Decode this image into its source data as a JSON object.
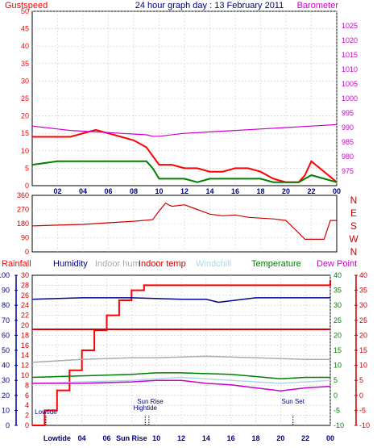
{
  "chart_data": [
    {
      "type": "line",
      "title": "24 hour graph day : 13 February 2011",
      "left_axis_title": "Gustspeed",
      "right_axis_title": "Barometer",
      "left_ylim": [
        0,
        50
      ],
      "left_ticks": [
        "0",
        "5",
        "10",
        "15",
        "20",
        "25",
        "30",
        "35",
        "40",
        "45",
        "50"
      ],
      "right_ylim": [
        970,
        1030
      ],
      "right_ticks": [
        "975",
        "980",
        "985",
        "990",
        "995",
        "1000",
        "1005",
        "1010",
        "1015",
        "1020",
        "1025"
      ],
      "x_ticks": [
        "02",
        "04",
        "06",
        "08",
        "10",
        "12",
        "14",
        "16",
        "18",
        "20",
        "22",
        "00"
      ],
      "series": [
        {
          "name": "Gustspeed",
          "color": "#ff0000",
          "values": [
            [
              0,
              14
            ],
            [
              1,
              14
            ],
            [
              2,
              14
            ],
            [
              3,
              14
            ],
            [
              4,
              15
            ],
            [
              5,
              16
            ],
            [
              6,
              15
            ],
            [
              7,
              14
            ],
            [
              8,
              13
            ],
            [
              9,
              11
            ],
            [
              10,
              6
            ],
            [
              11,
              6
            ],
            [
              12,
              5
            ],
            [
              13,
              5
            ],
            [
              14,
              4
            ],
            [
              15,
              4
            ],
            [
              16,
              5
            ],
            [
              17,
              5
            ],
            [
              18,
              4
            ],
            [
              19,
              2
            ],
            [
              20,
              1
            ],
            [
              21,
              1
            ],
            [
              21.5,
              3
            ],
            [
              22,
              7
            ],
            [
              23,
              4
            ],
            [
              24,
              1
            ]
          ]
        },
        {
          "name": "Windspeed",
          "color": "#008000",
          "values": [
            [
              0,
              6
            ],
            [
              2,
              7
            ],
            [
              4,
              7
            ],
            [
              6,
              7
            ],
            [
              8,
              7
            ],
            [
              9,
              7
            ],
            [
              9.5,
              5
            ],
            [
              10,
              2
            ],
            [
              11,
              2
            ],
            [
              12,
              2
            ],
            [
              13,
              1
            ],
            [
              14,
              2
            ],
            [
              15,
              2
            ],
            [
              16,
              2
            ],
            [
              17,
              2
            ],
            [
              18,
              2
            ],
            [
              19,
              1
            ],
            [
              20,
              1
            ],
            [
              21,
              1
            ],
            [
              22,
              3
            ],
            [
              23,
              2
            ],
            [
              24,
              1
            ]
          ]
        },
        {
          "name": "Barometer",
          "color": "#cc00cc",
          "values": [
            [
              0,
              990.5
            ],
            [
              1,
              990
            ],
            [
              2,
              989.5
            ],
            [
              3,
              989
            ],
            [
              5,
              988.5
            ],
            [
              7,
              988
            ],
            [
              9,
              987.5
            ],
            [
              9.5,
              987
            ],
            [
              10,
              987
            ],
            [
              12,
              988
            ],
            [
              14,
              988.5
            ],
            [
              16,
              989
            ],
            [
              18,
              989.5
            ],
            [
              20,
              990
            ],
            [
              22,
              990.5
            ],
            [
              24,
              991
            ]
          ]
        }
      ]
    },
    {
      "type": "line",
      "series_name": "Wind direction",
      "ylim": [
        0,
        360
      ],
      "y_ticks": [
        "0",
        "90",
        "180",
        "270",
        "360"
      ],
      "compass_labels": [
        "N",
        "W",
        "S",
        "E",
        "N"
      ],
      "values": [
        [
          0,
          165
        ],
        [
          2,
          170
        ],
        [
          4,
          175
        ],
        [
          6,
          185
        ],
        [
          8,
          195
        ],
        [
          9.5,
          205
        ],
        [
          10,
          260
        ],
        [
          10.5,
          310
        ],
        [
          11,
          290
        ],
        [
          12,
          300
        ],
        [
          13,
          270
        ],
        [
          14,
          240
        ],
        [
          15,
          230
        ],
        [
          16,
          235
        ],
        [
          17,
          220
        ],
        [
          18,
          215
        ],
        [
          19,
          210
        ],
        [
          20,
          200
        ],
        [
          21,
          120
        ],
        [
          21.5,
          80
        ],
        [
          23,
          80
        ],
        [
          23.5,
          200
        ],
        [
          24,
          200
        ]
      ]
    },
    {
      "type": "line",
      "legend": [
        "Rainfall",
        "Humidity",
        "Indoor hum",
        "Indoor temp",
        "Windchill",
        "Temperature",
        "Dew Point"
      ],
      "left_axis_1_ticks": [
        "0",
        "10",
        "20",
        "30",
        "40",
        "50",
        "60",
        "70",
        "80",
        "90",
        "100"
      ],
      "left_axis_2_ticks": [
        "0",
        "2",
        "4",
        "6",
        "8",
        "10",
        "12",
        "14",
        "16",
        "18",
        "20",
        "22",
        "24",
        "26",
        "28",
        "30"
      ],
      "right_axis_1_ticks": [
        "-10",
        "-5",
        "0",
        "5",
        "10",
        "15",
        "20",
        "25",
        "30",
        "35",
        "40"
      ],
      "right_axis_2_ticks": [
        "-10",
        "-5",
        "0",
        "5",
        "10",
        "15",
        "20",
        "25",
        "30",
        "35",
        "40"
      ],
      "x_ticks": [
        "Lowtide",
        "04",
        "06",
        "Sun Rise",
        "10",
        "12",
        "14",
        "16",
        "18",
        "20",
        "22",
        "00"
      ],
      "annotations": [
        "Lowtide",
        "Sun Rise",
        "Hightide",
        "Sun Set"
      ],
      "series": [
        {
          "name": "Rainfall",
          "color": "#ff0000",
          "unit_axis": "0-30",
          "values": [
            [
              0,
              0
            ],
            [
              1,
              3
            ],
            [
              2,
              7
            ],
            [
              3,
              11
            ],
            [
              4,
              15
            ],
            [
              5,
              19
            ],
            [
              6,
              22
            ],
            [
              7,
              25
            ],
            [
              8,
              27
            ],
            [
              9,
              28
            ],
            [
              10,
              28
            ],
            [
              14,
              28
            ],
            [
              18,
              28
            ],
            [
              22,
              28
            ],
            [
              23.5,
              28
            ],
            [
              24,
              29
            ]
          ]
        },
        {
          "name": "Humidity",
          "color": "#00008b",
          "unit_axis": "0-100",
          "values": [
            [
              0,
              84
            ],
            [
              4,
              85
            ],
            [
              8,
              85
            ],
            [
              12,
              84
            ],
            [
              14,
              84
            ],
            [
              15,
              82
            ],
            [
              16,
              83
            ],
            [
              18,
              85
            ],
            [
              20,
              85
            ],
            [
              22,
              85
            ],
            [
              24,
              85
            ]
          ]
        },
        {
          "name": "Indoor hum",
          "color": "#aaaaaa",
          "unit_axis": "0-100",
          "values": [
            [
              0,
              42
            ],
            [
              4,
              44
            ],
            [
              8,
              45
            ],
            [
              10,
              45
            ],
            [
              14,
              46
            ],
            [
              18,
              45
            ],
            [
              22,
              44
            ],
            [
              24,
              44
            ]
          ]
        },
        {
          "name": "Indoor temp",
          "color": "#dd0000",
          "unit_axis": "-10-40",
          "values": [
            [
              0,
              22
            ],
            [
              4,
              22
            ],
            [
              8,
              22
            ],
            [
              12,
              22
            ],
            [
              16,
              22
            ],
            [
              20,
              22
            ],
            [
              24,
              22
            ]
          ]
        },
        {
          "name": "Windchill",
          "color": "#add8e6",
          "unit_axis": "-10-40",
          "values": [
            [
              0,
              4
            ],
            [
              4,
              4.5
            ],
            [
              8,
              5
            ],
            [
              10,
              5.5
            ],
            [
              12,
              6
            ],
            [
              16,
              5
            ],
            [
              20,
              4
            ],
            [
              24,
              5
            ]
          ]
        },
        {
          "name": "Temperature",
          "color": "#008000",
          "unit_axis": "-10-40",
          "values": [
            [
              0,
              6
            ],
            [
              4,
              6.5
            ],
            [
              8,
              7
            ],
            [
              10,
              7.5
            ],
            [
              12,
              7.5
            ],
            [
              16,
              7
            ],
            [
              20,
              5.5
            ],
            [
              22,
              6
            ],
            [
              24,
              6
            ]
          ]
        },
        {
          "name": "Dew Point",
          "color": "#cc00cc",
          "unit_axis": "-10-40",
          "values": [
            [
              0,
              4
            ],
            [
              4,
              4
            ],
            [
              8,
              4.5
            ],
            [
              10,
              5
            ],
            [
              12,
              5
            ],
            [
              14,
              4
            ],
            [
              16,
              3.5
            ],
            [
              18,
              2.5
            ],
            [
              20,
              1.5
            ],
            [
              22,
              2.5
            ],
            [
              24,
              3
            ]
          ]
        }
      ]
    }
  ]
}
